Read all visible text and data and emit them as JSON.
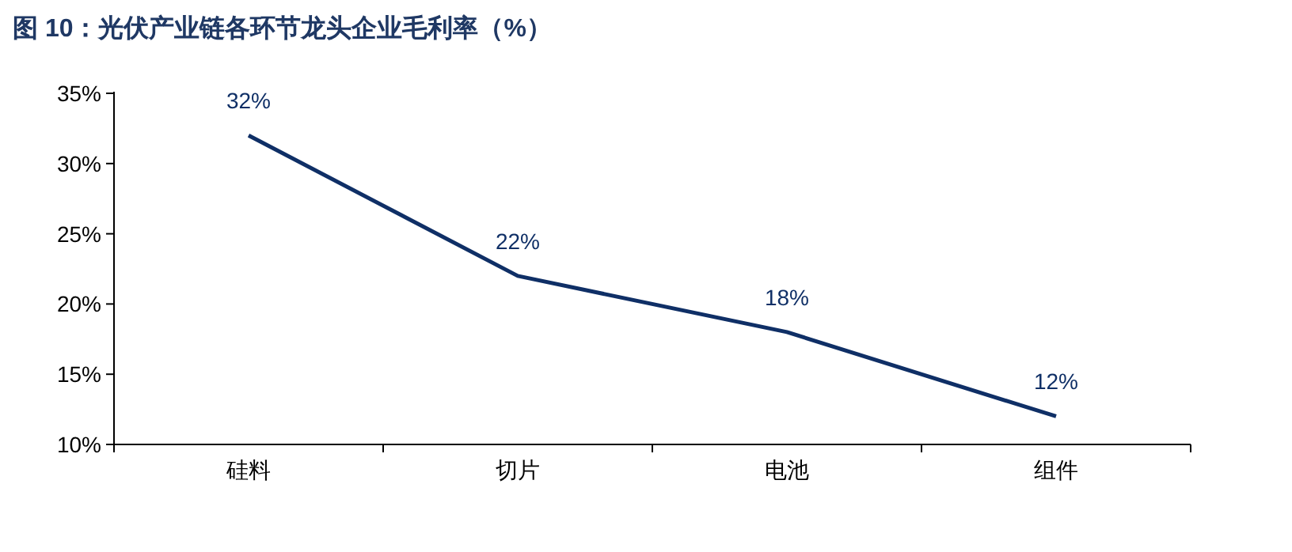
{
  "chart_data": {
    "type": "line",
    "title": "图 10：光伏产业链各环节龙头企业毛利率（%）",
    "categories": [
      "硅料",
      "切片",
      "电池",
      "组件"
    ],
    "values": [
      32,
      22,
      18,
      12
    ],
    "value_labels": [
      "32%",
      "22%",
      "18%",
      "12%"
    ],
    "color": "#0f2f66",
    "ylim": [
      10,
      35
    ],
    "yticks": [
      {
        "value": 10,
        "label": "10%"
      },
      {
        "value": 15,
        "label": "15%"
      },
      {
        "value": 20,
        "label": "20%"
      },
      {
        "value": 25,
        "label": "25%"
      },
      {
        "value": 30,
        "label": "30%"
      },
      {
        "value": 35,
        "label": "35%"
      }
    ],
    "marker": "none",
    "line_style": "solid"
  }
}
